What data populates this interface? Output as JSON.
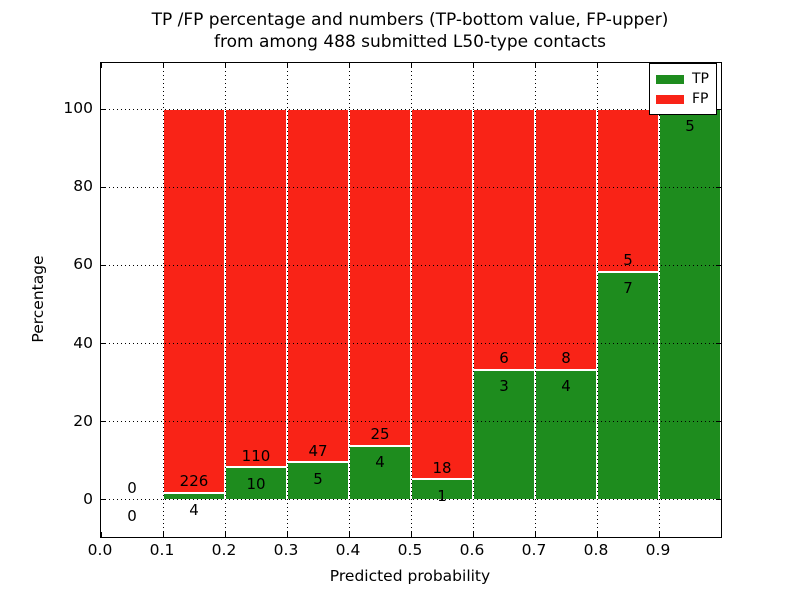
{
  "title": {
    "line1": "TP /FP percentage and numbers (TP-bottom value, FP-upper)",
    "line2": "from among 488 submitted L50-type contacts"
  },
  "axes": {
    "xlabel": "Predicted probability",
    "ylabel": "Percentage",
    "x_tick_labels": [
      "0.0",
      "0.1",
      "0.2",
      "0.3",
      "0.4",
      "0.5",
      "0.6",
      "0.7",
      "0.8",
      "0.9"
    ],
    "x_tick_values": [
      0.0,
      0.1,
      0.2,
      0.3,
      0.4,
      0.5,
      0.6,
      0.7,
      0.8,
      0.9
    ],
    "y_tick_labels": [
      "0",
      "20",
      "40",
      "60",
      "80",
      "100"
    ],
    "y_tick_values": [
      0,
      20,
      40,
      60,
      80,
      100
    ]
  },
  "legend": {
    "position": "upper-right",
    "items": [
      {
        "label": "TP",
        "color": "#1e8c1e"
      },
      {
        "label": "FP",
        "color": "#f92317"
      }
    ]
  },
  "chart_data": {
    "type": "bar",
    "stacked": true,
    "normalized_to_percent": 100,
    "title": "TP /FP percentage and numbers (TP-bottom value, FP-upper)\nfrom among 488 submitted L50-type contacts",
    "xlabel": "Predicted probability",
    "ylabel": "Percentage",
    "xlim": [
      0.0,
      1.0
    ],
    "ylim": [
      -9.5,
      111.8
    ],
    "grid": "dotted",
    "legend_position": "upper right",
    "total_contacts": 488,
    "colors": {
      "tp": "#1e8c1e",
      "fp": "#f92317",
      "bar_edge": "#ffffff"
    },
    "bins": [
      {
        "range": [
          0.0,
          0.1
        ],
        "tp_count": 0,
        "fp_count": 0,
        "tp_pct": 0,
        "fp_pct": 0,
        "has_bar": false,
        "tp_label": "0",
        "fp_label": "0"
      },
      {
        "range": [
          0.1,
          0.2
        ],
        "tp_count": 4,
        "fp_count": 226,
        "tp_pct": 1.739,
        "fp_pct": 98.261,
        "has_bar": true,
        "tp_label": "4",
        "fp_label": "226"
      },
      {
        "range": [
          0.2,
          0.3
        ],
        "tp_count": 10,
        "fp_count": 110,
        "tp_pct": 8.333,
        "fp_pct": 91.667,
        "has_bar": true,
        "tp_label": "10",
        "fp_label": "110"
      },
      {
        "range": [
          0.3,
          0.4
        ],
        "tp_count": 5,
        "fp_count": 47,
        "tp_pct": 9.615,
        "fp_pct": 90.385,
        "has_bar": true,
        "tp_label": "5",
        "fp_label": "47"
      },
      {
        "range": [
          0.4,
          0.5
        ],
        "tp_count": 4,
        "fp_count": 25,
        "tp_pct": 13.793,
        "fp_pct": 86.207,
        "has_bar": true,
        "tp_label": "4",
        "fp_label": "25"
      },
      {
        "range": [
          0.5,
          0.6
        ],
        "tp_count": 1,
        "fp_count": 18,
        "tp_pct": 5.263,
        "fp_pct": 94.737,
        "has_bar": true,
        "tp_label": "1",
        "fp_label": "18"
      },
      {
        "range": [
          0.6,
          0.7
        ],
        "tp_count": 3,
        "fp_count": 6,
        "tp_pct": 33.333,
        "fp_pct": 66.667,
        "has_bar": true,
        "tp_label": "3",
        "fp_label": "6"
      },
      {
        "range": [
          0.7,
          0.8
        ],
        "tp_count": 4,
        "fp_count": 8,
        "tp_pct": 33.333,
        "fp_pct": 66.667,
        "has_bar": true,
        "tp_label": "4",
        "fp_label": "8"
      },
      {
        "range": [
          0.8,
          0.9
        ],
        "tp_count": 7,
        "fp_count": 5,
        "tp_pct": 58.333,
        "fp_pct": 41.667,
        "has_bar": true,
        "tp_label": "7",
        "fp_label": "5"
      },
      {
        "range": [
          0.9,
          1.0
        ],
        "tp_count": 5,
        "fp_count": 0,
        "tp_pct": 100.0,
        "fp_pct": 0.0,
        "has_bar": true,
        "tp_label": "5",
        "fp_label": "0"
      }
    ]
  }
}
